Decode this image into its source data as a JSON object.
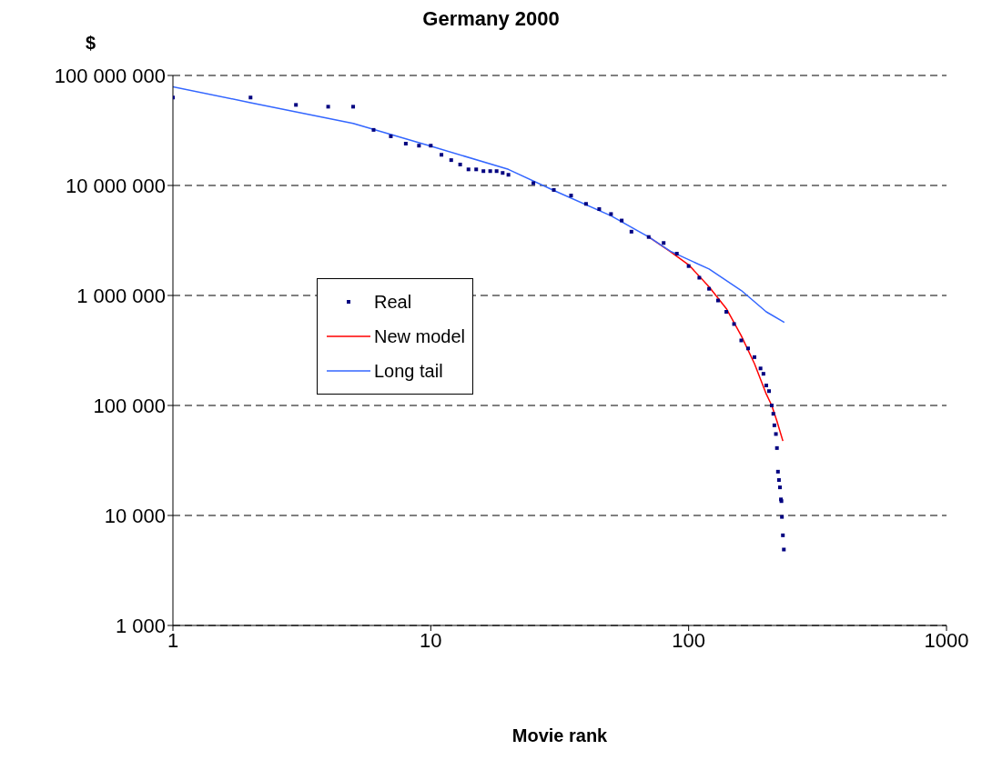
{
  "chart_data": {
    "type": "scatter",
    "title": "Germany 2000",
    "xlabel": "Movie rank",
    "ylabel": "$",
    "log": "xy",
    "grid": "y",
    "legend": "left",
    "xlim": [
      1,
      1000
    ],
    "xticks": [
      1,
      10,
      100,
      1000
    ],
    "ylim": [
      1000,
      100000000
    ],
    "yticks": [
      {
        "value": 1000,
        "label": "1 000"
      },
      {
        "value": 10000,
        "label": "10 000"
      },
      {
        "value": 100000,
        "label": "100 000"
      },
      {
        "value": 1000000,
        "label": "1 000 000"
      },
      {
        "value": 10000000,
        "label": "10 000 000"
      },
      {
        "value": 100000000,
        "label": "100 000 000"
      }
    ],
    "series": [
      {
        "name": "Real",
        "marker": "square",
        "color": "#000080",
        "x": [
          1,
          2,
          3,
          4,
          5,
          6,
          7,
          8,
          9,
          10,
          11,
          12,
          13,
          14,
          15,
          16,
          17,
          18,
          19,
          20,
          25,
          30,
          35,
          40,
          45,
          50,
          55,
          60,
          70,
          80,
          90,
          100,
          110,
          120,
          130,
          140,
          150,
          160,
          170,
          180,
          190,
          195,
          200,
          205,
          210,
          213,
          215,
          218,
          220,
          222,
          224,
          226,
          228,
          229,
          230,
          232,
          234
        ],
        "values": [
          63000000,
          63000000,
          54000000,
          52000000,
          52000000,
          32000000,
          28000000,
          24000000,
          23000000,
          23000000,
          19000000,
          17000000,
          15500000,
          14000000,
          14000000,
          13500000,
          13500000,
          13500000,
          13000000,
          12500000,
          10500000,
          9100000,
          8100000,
          6800000,
          6100000,
          5500000,
          4800000,
          3800000,
          3400000,
          3000000,
          2400000,
          1850000,
          1450000,
          1150000,
          900000,
          710000,
          550000,
          390000,
          330000,
          275000,
          217000,
          194000,
          152000,
          135000,
          100000,
          84000,
          66000,
          55000,
          41000,
          25000,
          21000,
          18000,
          14000,
          13500,
          9700,
          6600,
          4900
        ]
      },
      {
        "name": "New model",
        "type": "line",
        "marker": "none",
        "color": "#ff0000",
        "x": [
          70,
          85,
          100,
          120,
          140,
          160,
          180,
          200,
          210,
          220,
          232
        ],
        "values": [
          3400000,
          2500000,
          1900000,
          1200000,
          760000,
          430000,
          240000,
          127000,
          100000,
          72000,
          47500
        ]
      },
      {
        "name": "Long tail",
        "type": "line",
        "marker": "none",
        "color": "#3366ff",
        "x": [
          1,
          2,
          5,
          10,
          20,
          30,
          50,
          70,
          85,
          120,
          160,
          200,
          235
        ],
        "values": [
          79000000,
          56500000,
          36600000,
          22800000,
          14000000,
          9000000,
          5300000,
          3400000,
          2520000,
          1740000,
          1110000,
          710000,
          570000
        ]
      }
    ]
  }
}
